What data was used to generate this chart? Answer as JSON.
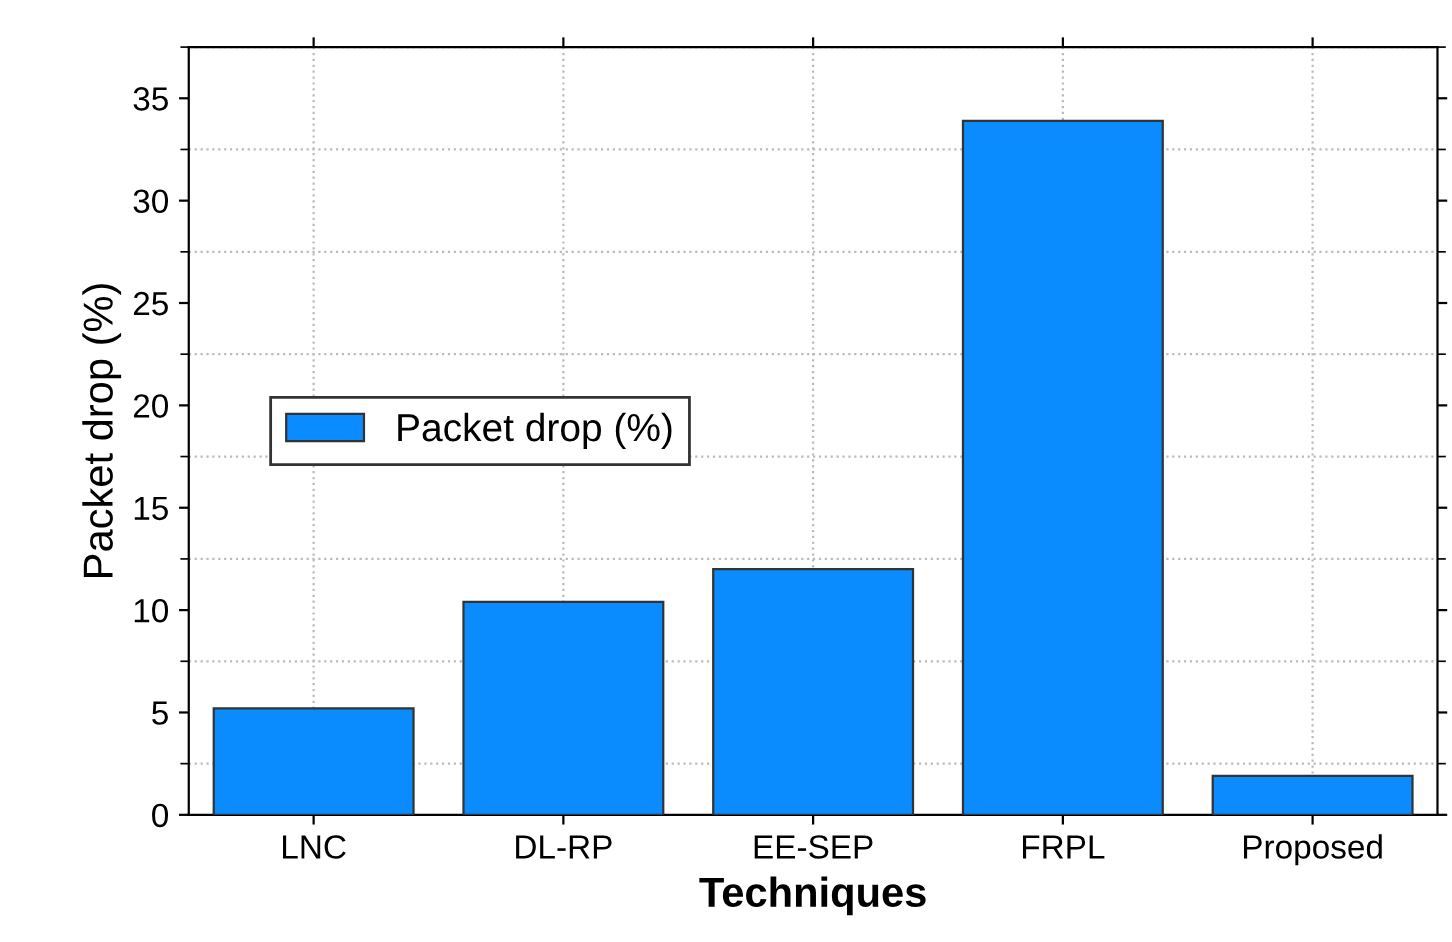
{
  "chart_data": {
    "type": "bar",
    "xlabel": "Techniques",
    "ylabel": "Packet drop (%)",
    "categories": [
      "LNC",
      "DL-RP",
      "EE-SEP",
      "FRPL",
      "Proposed"
    ],
    "series": [
      {
        "name": "Packet drop (%)",
        "color": "#0a8cff",
        "values": [
          5.2,
          10.4,
          12.0,
          33.9,
          1.9
        ]
      }
    ],
    "ylim": [
      0,
      37.5
    ],
    "yticks": [
      0,
      5,
      10,
      15,
      20,
      25,
      30,
      35
    ],
    "grid": true,
    "legend": "center left"
  }
}
